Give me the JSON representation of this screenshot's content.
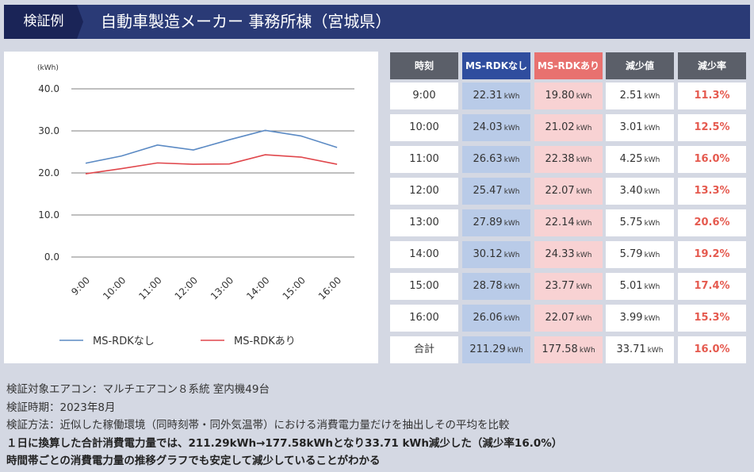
{
  "header": {
    "tag": "検証例",
    "title": "自動車製造メーカー 事務所棟（宮城県）"
  },
  "chart_data": {
    "type": "line",
    "y_unit": "(kWh)",
    "categories": [
      "9:00",
      "10:00",
      "11:00",
      "12:00",
      "13:00",
      "14:00",
      "15:00",
      "16:00"
    ],
    "series": [
      {
        "name": "MS-RDKなし",
        "color": "#5b8ac4",
        "values": [
          22.31,
          24.03,
          26.63,
          25.47,
          27.89,
          30.12,
          28.78,
          26.06
        ]
      },
      {
        "name": "MS-RDKあり",
        "color": "#e0474c",
        "values": [
          19.8,
          21.02,
          22.38,
          22.07,
          22.14,
          24.33,
          23.77,
          22.07
        ]
      }
    ],
    "ylim": [
      0,
      40
    ],
    "yticks": [
      {
        "value": 0,
        "label": "0.0"
      },
      {
        "value": 10,
        "label": "10.0"
      },
      {
        "value": 20,
        "label": "20.0"
      },
      {
        "value": 30,
        "label": "30.0"
      },
      {
        "value": 40,
        "label": "40.0"
      }
    ],
    "grid": true,
    "legend": "bottom"
  },
  "table": {
    "unit": "kWh",
    "header": [
      "時刻",
      "MS-RDKなし",
      "MS-RDKあり",
      "減少値",
      "減少率"
    ],
    "rows": [
      [
        "9:00",
        "22.31",
        "19.80",
        "2.51",
        "11.3%"
      ],
      [
        "10:00",
        "24.03",
        "21.02",
        "3.01",
        "12.5%"
      ],
      [
        "11:00",
        "26.63",
        "22.38",
        "4.25",
        "16.0%"
      ],
      [
        "12:00",
        "25.47",
        "22.07",
        "3.40",
        "13.3%"
      ],
      [
        "13:00",
        "27.89",
        "22.14",
        "5.75",
        "20.6%"
      ],
      [
        "14:00",
        "30.12",
        "24.33",
        "5.79",
        "19.2%"
      ],
      [
        "15:00",
        "28.78",
        "23.77",
        "5.01",
        "17.4%"
      ],
      [
        "16:00",
        "26.06",
        "22.07",
        "3.99",
        "15.3%"
      ],
      [
        "合計",
        "211.29",
        "177.58",
        "33.71",
        "16.0%"
      ]
    ]
  },
  "notes": [
    "検証対象エアコン：マルチエアコン８系統 室内機49台",
    "検証時期：2023年8月",
    "検証方法：近似した稼働環境（同時刻帯・同外気温帯）における消費電力量だけを抽出しその平均を比較"
  ],
  "conclusions": [
    "１日に換算した合計消費電力量では、211.29kWh→177.58kWhとなり33.71 kWh減少した（減少率16.0%）",
    "時間帯ごとの消費電力量の推移グラフでも安定して減少していることがわかる"
  ]
}
